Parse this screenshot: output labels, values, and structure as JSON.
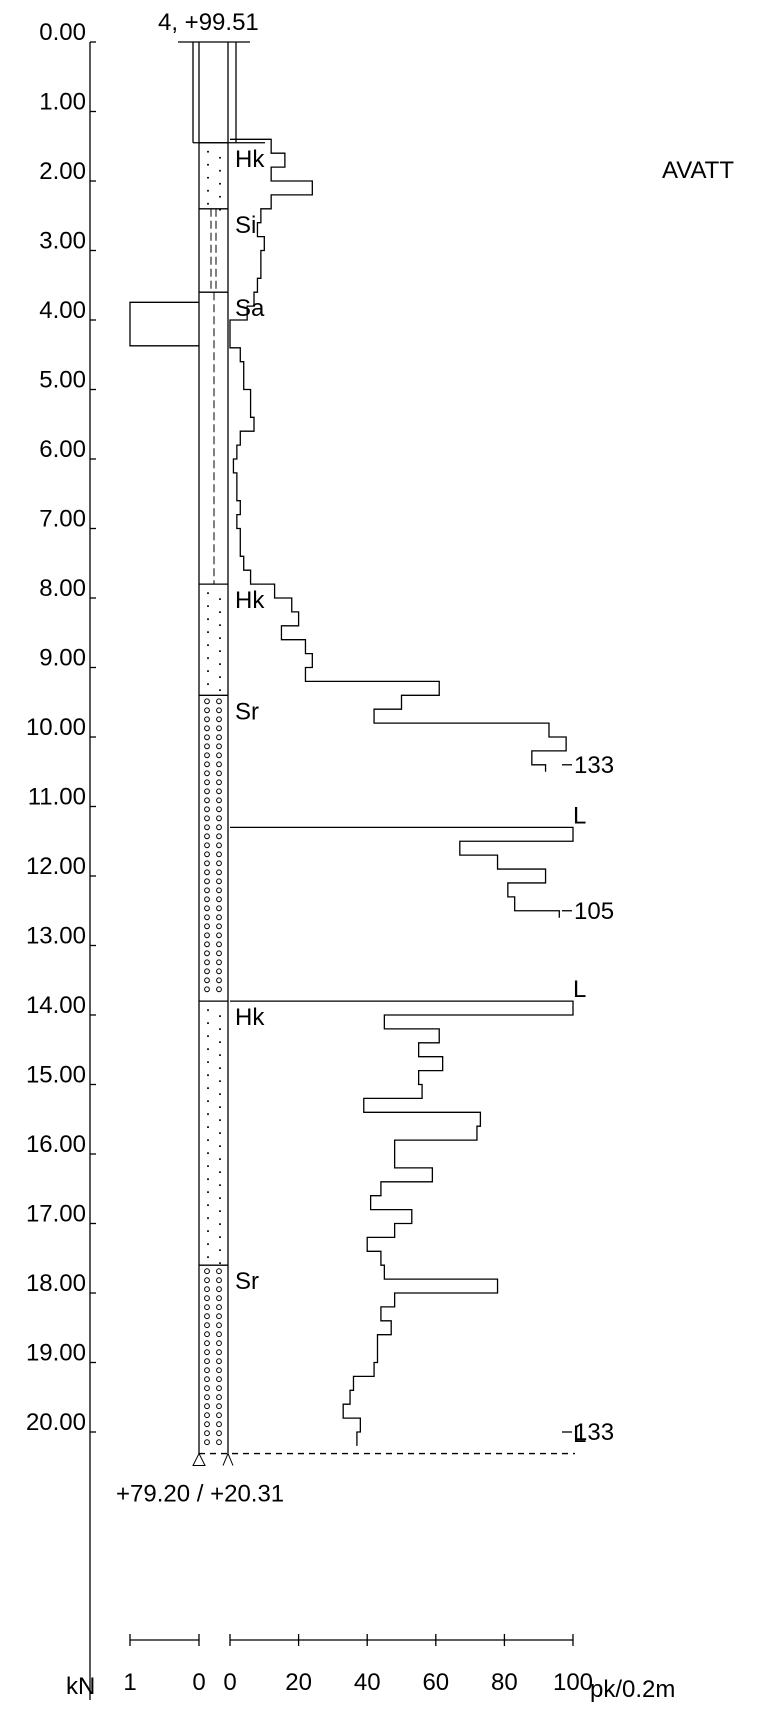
{
  "header": {
    "point_label": "4, +99.51",
    "side_label": "AVATT"
  },
  "depth_axis": {
    "labels": [
      "0.00",
      "1.00",
      "2.00",
      "3.00",
      "4.00",
      "5.00",
      "6.00",
      "7.00",
      "8.00",
      "9.00",
      "10.00",
      "11.00",
      "12.00",
      "13.00",
      "14.00",
      "15.00",
      "16.00",
      "17.00",
      "18.00",
      "19.00",
      "20.00"
    ]
  },
  "layers": [
    {
      "code": "Hk",
      "top": 1.45,
      "bottom": 2.4,
      "fill": "fine-dots"
    },
    {
      "code": "Si",
      "top": 2.4,
      "bottom": 3.6,
      "fill": "double-dash"
    },
    {
      "code": "Sa",
      "top": 3.6,
      "bottom": 7.8,
      "fill": "dash"
    },
    {
      "code": "Hk",
      "top": 7.8,
      "bottom": 9.4,
      "fill": "fine-dots"
    },
    {
      "code": "Sr",
      "top": 9.4,
      "bottom": 13.8,
      "fill": "circles"
    },
    {
      "code": "Hk",
      "top": 13.8,
      "bottom": 17.6,
      "fill": "fine-dots"
    },
    {
      "code": "Sr",
      "top": 17.6,
      "bottom": 20.31,
      "fill": "circles"
    }
  ],
  "markers": [
    {
      "text": "133",
      "depth": 10.4
    },
    {
      "text": "L",
      "depth": 11.3
    },
    {
      "text": "105",
      "depth": 12.5
    },
    {
      "text": "L",
      "depth": 13.8
    },
    {
      "text": "133",
      "depth": 20.0
    },
    {
      "text": "L",
      "depth": 20.2
    }
  ],
  "bottom": {
    "elevation_label": "+79.20 / +20.31"
  },
  "bottom_axis": {
    "unit_left": "kN",
    "left_ticks": [
      "1",
      "0"
    ],
    "right_ticks": [
      "0",
      "20",
      "40",
      "60",
      "80",
      "100"
    ],
    "unit_right": "pk/0.2m"
  },
  "chart_data": {
    "type": "line",
    "xlabel": "pk/0.2m",
    "ylabel": "",
    "xlim": [
      0,
      100
    ],
    "ylim": [
      0,
      20.31
    ],
    "weight_sounding_kN": [
      {
        "from": 3.4,
        "to": 4.4,
        "kN": 1.0
      }
    ],
    "series": [
      {
        "steps": [
          [
            1.4,
            1.6,
            12
          ],
          [
            1.6,
            1.8,
            16
          ],
          [
            1.8,
            2.0,
            12
          ],
          [
            2.0,
            2.2,
            24
          ],
          [
            2.2,
            2.4,
            12
          ],
          [
            2.4,
            2.6,
            9
          ],
          [
            2.6,
            2.8,
            8
          ],
          [
            2.8,
            3.0,
            10
          ],
          [
            3.0,
            3.2,
            9
          ],
          [
            3.2,
            3.4,
            9
          ],
          [
            3.4,
            3.6,
            8
          ],
          [
            3.6,
            3.8,
            7
          ],
          [
            3.8,
            4.0,
            5
          ],
          [
            4.0,
            4.4,
            0
          ],
          [
            4.4,
            4.6,
            3
          ],
          [
            4.6,
            4.8,
            4
          ],
          [
            4.8,
            5.0,
            4
          ],
          [
            5.0,
            5.2,
            6
          ],
          [
            5.2,
            5.4,
            6
          ],
          [
            5.4,
            5.6,
            7
          ],
          [
            5.6,
            5.8,
            3
          ],
          [
            5.8,
            6.0,
            2
          ],
          [
            6.0,
            6.2,
            1
          ],
          [
            6.2,
            6.4,
            2
          ],
          [
            6.4,
            6.6,
            2
          ],
          [
            6.6,
            6.8,
            3
          ],
          [
            6.8,
            7.0,
            2
          ],
          [
            7.0,
            7.2,
            3
          ],
          [
            7.2,
            7.4,
            3
          ],
          [
            7.4,
            7.6,
            4
          ],
          [
            7.6,
            7.8,
            6
          ],
          [
            7.8,
            8.0,
            13
          ],
          [
            8.0,
            8.2,
            18
          ],
          [
            8.2,
            8.4,
            20
          ],
          [
            8.4,
            8.6,
            15
          ],
          [
            8.6,
            8.8,
            22
          ],
          [
            8.8,
            9.0,
            24
          ],
          [
            9.0,
            9.2,
            22
          ],
          [
            9.2,
            9.4,
            61
          ],
          [
            9.4,
            9.6,
            50
          ],
          [
            9.6,
            9.8,
            42
          ],
          [
            9.8,
            10.0,
            93
          ],
          [
            10.0,
            10.2,
            98
          ],
          [
            10.2,
            10.4,
            88
          ],
          [
            10.4,
            10.5,
            92
          ],
          [
            11.3,
            11.5,
            100
          ],
          [
            11.5,
            11.7,
            67
          ],
          [
            11.7,
            11.9,
            78
          ],
          [
            11.9,
            12.1,
            92
          ],
          [
            12.1,
            12.3,
            81
          ],
          [
            12.3,
            12.5,
            83
          ],
          [
            12.5,
            12.6,
            96
          ],
          [
            13.8,
            14.0,
            100
          ],
          [
            14.0,
            14.2,
            45
          ],
          [
            14.2,
            14.4,
            61
          ],
          [
            14.4,
            14.6,
            55
          ],
          [
            14.6,
            14.8,
            62
          ],
          [
            14.8,
            15.0,
            55
          ],
          [
            15.0,
            15.2,
            56
          ],
          [
            15.2,
            15.4,
            39
          ],
          [
            15.4,
            15.6,
            73
          ],
          [
            15.6,
            15.8,
            72
          ],
          [
            15.8,
            16.0,
            48
          ],
          [
            16.0,
            16.2,
            48
          ],
          [
            16.2,
            16.4,
            59
          ],
          [
            16.4,
            16.6,
            44
          ],
          [
            16.6,
            16.8,
            41
          ],
          [
            16.8,
            17.0,
            53
          ],
          [
            17.0,
            17.2,
            48
          ],
          [
            17.2,
            17.4,
            40
          ],
          [
            17.4,
            17.6,
            44
          ],
          [
            17.6,
            17.8,
            45
          ],
          [
            17.8,
            18.0,
            78
          ],
          [
            18.0,
            18.2,
            48
          ],
          [
            18.2,
            18.4,
            44
          ],
          [
            18.4,
            18.6,
            47
          ],
          [
            18.6,
            18.8,
            43
          ],
          [
            18.8,
            19.0,
            43
          ],
          [
            19.0,
            19.2,
            42
          ],
          [
            19.2,
            19.4,
            36
          ],
          [
            19.4,
            19.6,
            35
          ],
          [
            19.6,
            19.8,
            33
          ],
          [
            19.8,
            20.0,
            38
          ],
          [
            20.0,
            20.2,
            37
          ]
        ]
      }
    ]
  }
}
